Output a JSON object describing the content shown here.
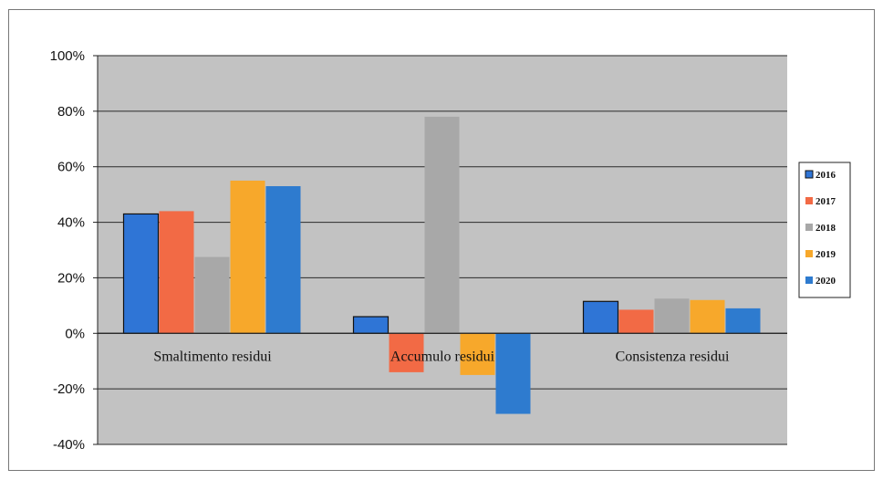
{
  "chart_data": {
    "type": "bar",
    "categories": [
      "Smaltimento residui",
      "Accumulo residui",
      "Consistenza residui"
    ],
    "series": [
      {
        "name": "2016",
        "color": "#2f75d6",
        "values": [
          43,
          6,
          11.5
        ]
      },
      {
        "name": "2017",
        "color": "#f26a45",
        "values": [
          44,
          -14,
          8.5
        ]
      },
      {
        "name": "2018",
        "color": "#a8a8a8",
        "values": [
          27.5,
          78,
          12.5
        ]
      },
      {
        "name": "2019",
        "color": "#f7a82b",
        "values": [
          55,
          -15,
          12
        ]
      },
      {
        "name": "2020",
        "color": "#2e7bcf",
        "values": [
          53,
          -29,
          9
        ]
      }
    ],
    "ylim": [
      -40,
      100
    ],
    "yticks": [
      100,
      80,
      60,
      40,
      20,
      0,
      -20,
      -40
    ],
    "ytick_labels": [
      "100%",
      "80%",
      "60%",
      "40%",
      "20%",
      "0%",
      "-20%",
      "-40%"
    ],
    "grid": true,
    "legend_position": "right",
    "plot_background": "#c2c2c2"
  }
}
